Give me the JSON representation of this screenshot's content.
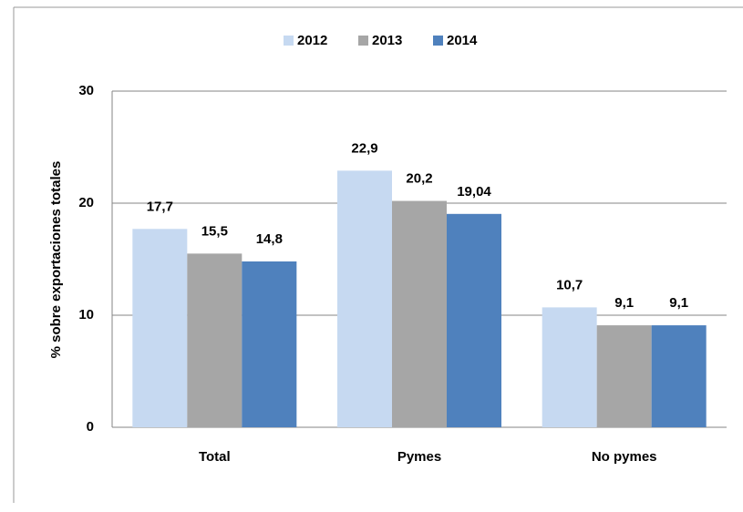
{
  "chart_data": {
    "type": "bar",
    "y_label": "% sobre exportaciones totales",
    "categories": [
      "Total",
      "Pymes",
      "No pymes"
    ],
    "series": [
      {
        "name": "2012",
        "color": "#c6d9f1",
        "values": [
          17.7,
          22.9,
          10.7
        ],
        "value_labels": [
          "17,7",
          "22,9",
          "10,7"
        ]
      },
      {
        "name": "2013",
        "color": "#a6a6a6",
        "values": [
          15.5,
          20.2,
          9.1
        ],
        "value_labels": [
          "15,5",
          "20,2",
          "9,1"
        ]
      },
      {
        "name": "2014",
        "color": "#4f81bd",
        "values": [
          14.8,
          19.04,
          9.1
        ],
        "value_labels": [
          "14,8",
          "19,04",
          "9,1"
        ]
      }
    ],
    "ylim": [
      0,
      30
    ],
    "yticks": [
      0,
      10,
      20,
      30
    ],
    "grid": true,
    "legend": "top"
  }
}
